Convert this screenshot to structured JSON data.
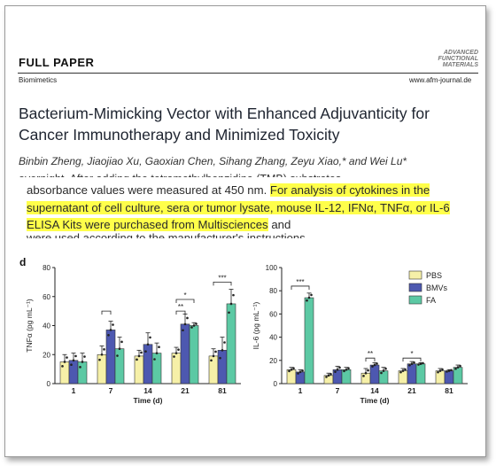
{
  "header": {
    "label": "FULL PAPER",
    "section": "Biomimetics",
    "journal_logo": [
      "ADVANCED",
      "FUNCTIONAL",
      "MATERIALS"
    ],
    "journal_url": "www.afm-journal.de"
  },
  "article": {
    "title": "Bacterium-Mimicking Vector with Enhanced Adjuvanticity for Cancer Immunotherapy and Minimized Toxicity",
    "authors": "Binbin Zheng, Jiaojiao Xu, Gaoxian Chen, Sihang Zhang, Zeyu Xiao,* and Wei Lu*",
    "cut_line_top": "overnight. After adding the tetramethylbenzidine (TMB) substrates,",
    "paragraph_plain": "absorbance values were measured at 450 nm. ",
    "paragraph_highlight": "For analysis of cytokines in the supernatant of cell culture, sera or tumor lysate, mouse IL-12, IFNα, TNFα, or IL-6 ELISA Kits were purchased from Multisciences",
    "paragraph_tail": " and",
    "cut_line_bottom": "were used according to the manufacturer's instructions"
  },
  "figure": {
    "panel_label": "d",
    "legend": [
      "PBS",
      "BMVs",
      "FA"
    ],
    "colors": {
      "PBS": "#f6f0a8",
      "BMVs": "#4d58b0",
      "FA": "#5cc9a4"
    }
  },
  "chart_data": [
    {
      "type": "bar",
      "ylabel": "TNFα (pg mL⁻¹)",
      "xlabel": "Time (d)",
      "categories": [
        "1",
        "7",
        "14",
        "21",
        "81"
      ],
      "ylim": [
        0,
        80
      ],
      "yticks": [
        0,
        20,
        40,
        60,
        80
      ],
      "series": [
        {
          "name": "PBS",
          "values": [
            15,
            20,
            19,
            21,
            19
          ],
          "errors": [
            5,
            6,
            4,
            4,
            5
          ]
        },
        {
          "name": "BMVs",
          "values": [
            16,
            37,
            27,
            41,
            23
          ],
          "errors": [
            5,
            6,
            8,
            7,
            9
          ]
        },
        {
          "name": "FA",
          "values": [
            15,
            24,
            21,
            40,
            55
          ],
          "errors": [
            6,
            8,
            7,
            2,
            10
          ]
        }
      ],
      "significance": [
        "*",
        "*",
        "**",
        "*",
        "***"
      ]
    },
    {
      "type": "bar",
      "ylabel": "IL-6 (pg mL⁻¹)",
      "xlabel": "Time (d)",
      "categories": [
        "1",
        "7",
        "14",
        "21",
        "81"
      ],
      "ylim": [
        0,
        100
      ],
      "yticks": [
        0,
        20,
        40,
        60,
        80,
        100
      ],
      "series": [
        {
          "name": "PBS",
          "values": [
            12,
            7,
            9,
            11,
            11
          ],
          "errors": [
            2,
            2,
            4,
            2,
            2
          ]
        },
        {
          "name": "BMVs",
          "values": [
            10,
            12,
            16,
            17,
            11
          ],
          "errors": [
            2,
            3,
            2,
            2,
            1
          ]
        },
        {
          "name": "FA",
          "values": [
            74,
            12,
            11,
            17,
            14
          ],
          "errors": [
            4,
            2,
            3,
            1,
            2
          ]
        }
      ],
      "significance": [
        "***",
        "**",
        "*"
      ]
    }
  ]
}
